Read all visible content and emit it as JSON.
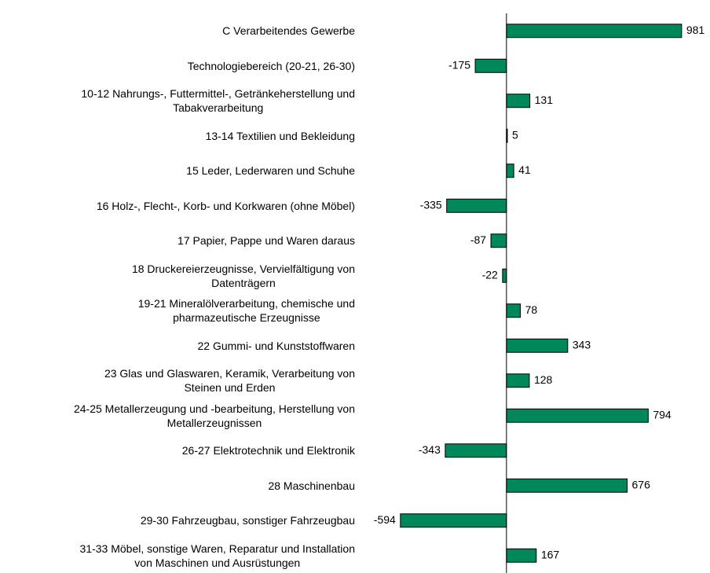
{
  "chart_data": {
    "type": "bar",
    "orientation": "horizontal",
    "categories": [
      "C Verarbeitendes Gewerbe",
      "Technologiebereich (20-21, 26-30)",
      "10-12 Nahrungs-, Futtermittel-, Getränkeherstellung und\nTabakverarbeitung",
      "13-14 Textilien und Bekleidung",
      "15 Leder, Lederwaren und Schuhe",
      "16 Holz-, Flecht-, Korb- und Korkwaren (ohne Möbel)",
      "17 Papier, Pappe und Waren daraus",
      "18 Druckereierzeugnisse, Vervielfältigung von\nDatenträgern",
      "19-21 Mineralölverarbeitung, chemische und\npharmazeutische Erzeugnisse",
      "22 Gummi- und Kunststoffwaren",
      "23 Glas und Glaswaren, Keramik, Verarbeitung von\nSteinen und Erden",
      "24-25 Metallerzeugung und -bearbeitung, Herstellung von\nMetallerzeugnissen",
      "26-27 Elektrotechnik und Elektronik",
      "28 Maschinenbau",
      "29-30 Fahrzeugbau, sonstiger Fahrzeugbau",
      "31-33 Möbel, sonstige Waren, Reparatur und Installation\nvon Maschinen und Ausrüstungen"
    ],
    "values": [
      981,
      -175,
      131,
      5,
      41,
      -335,
      -87,
      -22,
      78,
      343,
      128,
      794,
      -343,
      676,
      -594,
      167
    ],
    "color": "#00875a",
    "xlim": [
      -800,
      1140
    ]
  }
}
